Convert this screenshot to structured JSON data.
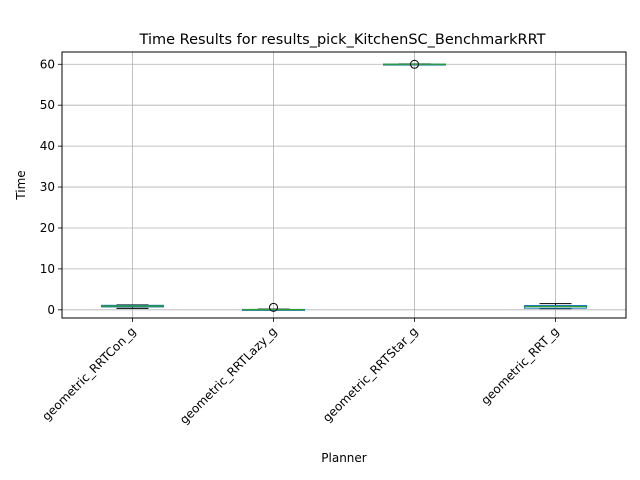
{
  "chart_data": {
    "type": "box",
    "title": "Time Results for results_pick_KitchenSC_BenchmarkRRT",
    "xlabel": "Planner",
    "ylabel": "Time",
    "ylim": [
      -2.0,
      63.0
    ],
    "yticks": [
      0,
      10,
      20,
      30,
      40,
      50,
      60
    ],
    "grid": true,
    "categories": [
      "geometric_RRTCon_g",
      "geometric_RRTLazy_g",
      "geometric_RRTStar_g",
      "geometric_RRT_g"
    ],
    "boxes": [
      {
        "category": "geometric_RRTCon_g",
        "whislo": 0.35,
        "q1": 0.7,
        "median": 0.9,
        "q3": 1.1,
        "whishi": 1.2,
        "fliers": []
      },
      {
        "category": "geometric_RRTLazy_g",
        "whislo": 0.0,
        "q1": 0.02,
        "median": 0.05,
        "q3": 0.1,
        "whishi": 0.18,
        "fliers": [
          0.6
        ]
      },
      {
        "category": "geometric_RRTStar_g",
        "whislo": 60.0,
        "q1": 60.0,
        "median": 60.0,
        "q3": 60.05,
        "whishi": 60.1,
        "fliers": [
          60.0
        ]
      },
      {
        "category": "geometric_RRT_g",
        "whislo": 0.3,
        "q1": 0.4,
        "median": 0.8,
        "q3": 1.05,
        "whishi": 1.5,
        "fliers": []
      }
    ],
    "colors": {
      "box": "#1f77b4",
      "median": "#2ca02c",
      "whisker": "#000000",
      "grid": "#b0b0b0",
      "flier": "#000000"
    }
  }
}
